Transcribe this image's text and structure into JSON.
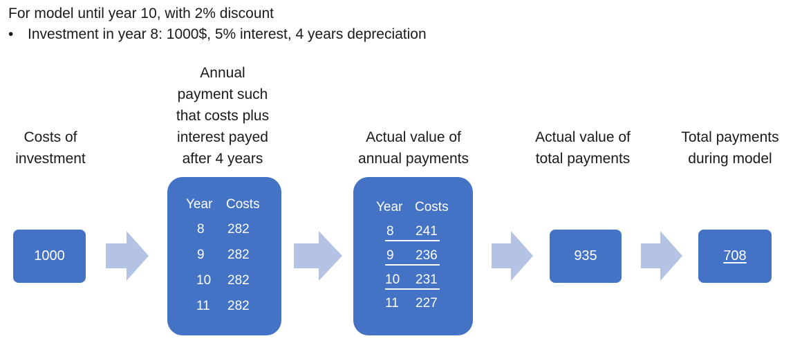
{
  "header": {
    "title": "For model until year 10, with 2% discount",
    "bullet": "Investment in year 8: 1000$, 5% interest, 4 years depreciation"
  },
  "steps": {
    "costs": {
      "label_lines": [
        "Costs of",
        "investment"
      ],
      "value": "1000"
    },
    "annual": {
      "label_lines": [
        "Annual",
        "payment such",
        "that costs plus",
        "interest payed",
        "after 4 years"
      ],
      "header": {
        "year": "Year",
        "costs": "Costs"
      },
      "rows": [
        {
          "year": "8",
          "cost": "282"
        },
        {
          "year": "9",
          "cost": "282"
        },
        {
          "year": "10",
          "cost": "282"
        },
        {
          "year": "11",
          "cost": "282"
        }
      ]
    },
    "actual_annual": {
      "label_lines": [
        "Actual value of",
        "annual payments"
      ],
      "header": {
        "year": "Year",
        "costs": "Costs"
      },
      "rows": [
        {
          "year": "8",
          "cost": "241",
          "underlined": true
        },
        {
          "year": "9",
          "cost": "236",
          "underlined": true
        },
        {
          "year": "10",
          "cost": "231",
          "underlined": true
        },
        {
          "year": "11",
          "cost": "227",
          "underlined": false
        }
      ]
    },
    "actual_total": {
      "label_lines": [
        "Actual value of",
        "total payments"
      ],
      "value": "935"
    },
    "total_model": {
      "label_lines": [
        "Total payments",
        "during model"
      ],
      "value": "708"
    }
  },
  "colors": {
    "box": "#4472c4",
    "arrow": "#b4c2e3",
    "text": "#1a1a1a"
  }
}
